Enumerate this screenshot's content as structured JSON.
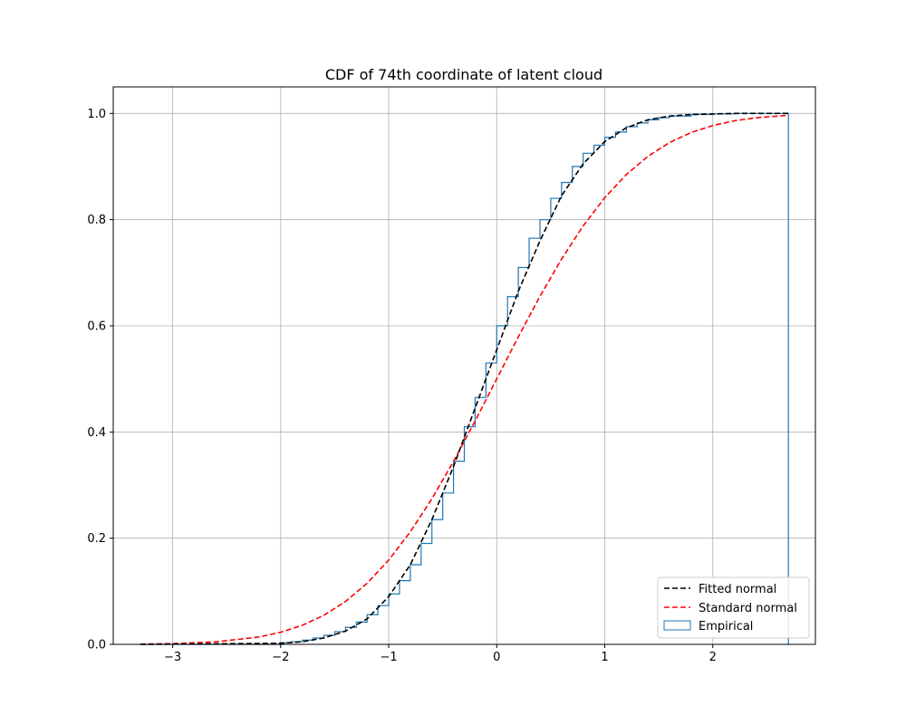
{
  "chart_data": {
    "type": "line",
    "title": "CDF of 74th coordinate of latent cloud",
    "xlabel": "",
    "ylabel": "",
    "xlim": [
      -3.55,
      2.95
    ],
    "ylim": [
      0.0,
      1.05
    ],
    "xticks": [
      -3,
      -2,
      -1,
      0,
      1,
      2
    ],
    "xtick_labels": [
      "−3",
      "−2",
      "−1",
      "0",
      "1",
      "2"
    ],
    "yticks": [
      0.0,
      0.2,
      0.4,
      0.6,
      0.8,
      1.0
    ],
    "ytick_labels": [
      "0.0",
      "0.2",
      "0.4",
      "0.6",
      "0.8",
      "1.0"
    ],
    "grid": true,
    "legend_position": "bottom-right",
    "series": [
      {
        "name": "Fitted normal",
        "style": "dashed",
        "color": "#000000",
        "x": [
          -3.3,
          -2.0,
          -1.8,
          -1.6,
          -1.4,
          -1.2,
          -1.0,
          -0.8,
          -0.6,
          -0.4,
          -0.2,
          0.0,
          0.2,
          0.4,
          0.6,
          0.8,
          1.0,
          1.2,
          1.4,
          1.6,
          1.8,
          2.0,
          2.2,
          2.4,
          2.7
        ],
        "y": [
          0.0,
          0.002,
          0.005,
          0.012,
          0.025,
          0.048,
          0.09,
          0.15,
          0.235,
          0.335,
          0.445,
          0.555,
          0.665,
          0.76,
          0.845,
          0.905,
          0.947,
          0.973,
          0.988,
          0.995,
          0.998,
          0.999,
          1.0,
          1.0,
          1.0
        ]
      },
      {
        "name": "Standard normal",
        "style": "dashed",
        "color": "#ff0000",
        "x": [
          -3.3,
          -3.0,
          -2.6,
          -2.2,
          -2.0,
          -1.8,
          -1.6,
          -1.4,
          -1.2,
          -1.0,
          -0.8,
          -0.6,
          -0.4,
          -0.2,
          0.0,
          0.2,
          0.4,
          0.6,
          0.8,
          1.0,
          1.2,
          1.4,
          1.6,
          1.8,
          2.0,
          2.2,
          2.4,
          2.7
        ],
        "y": [
          0.0005,
          0.0013,
          0.0047,
          0.0139,
          0.0228,
          0.0359,
          0.0548,
          0.0808,
          0.1151,
          0.1587,
          0.2119,
          0.2743,
          0.3446,
          0.4207,
          0.5,
          0.5793,
          0.6554,
          0.7257,
          0.7881,
          0.8413,
          0.8849,
          0.9192,
          0.9452,
          0.9641,
          0.9772,
          0.9861,
          0.9918,
          0.9965
        ]
      },
      {
        "name": "Empirical",
        "style": "step-histogram",
        "color": "#1f77b4",
        "x": [
          -3.3,
          -2.0,
          -1.9,
          -1.8,
          -1.7,
          -1.6,
          -1.5,
          -1.4,
          -1.3,
          -1.2,
          -1.1,
          -1.0,
          -0.9,
          -0.8,
          -0.7,
          -0.6,
          -0.5,
          -0.4,
          -0.3,
          -0.2,
          -0.1,
          0.0,
          0.1,
          0.2,
          0.3,
          0.4,
          0.5,
          0.6,
          0.7,
          0.8,
          0.9,
          1.0,
          1.1,
          1.2,
          1.3,
          1.4,
          1.5,
          1.6,
          1.8,
          2.0,
          2.2,
          2.4,
          2.7
        ],
        "y": [
          0.0,
          0.003,
          0.005,
          0.008,
          0.012,
          0.017,
          0.024,
          0.032,
          0.042,
          0.056,
          0.073,
          0.095,
          0.12,
          0.15,
          0.19,
          0.235,
          0.285,
          0.345,
          0.41,
          0.465,
          0.53,
          0.6,
          0.655,
          0.71,
          0.765,
          0.8,
          0.84,
          0.87,
          0.9,
          0.925,
          0.94,
          0.955,
          0.965,
          0.975,
          0.982,
          0.988,
          0.992,
          0.995,
          0.998,
          0.999,
          1.0,
          1.0,
          1.0
        ]
      }
    ]
  }
}
